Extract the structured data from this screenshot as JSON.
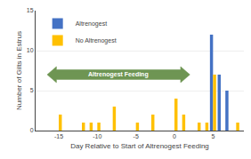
{
  "chart_data": {
    "type": "bar",
    "xlabel": "Day Relative to Start of Altrenogest Feeding",
    "ylabel": "Number of Gilts in Estrus",
    "x": [
      -16,
      -15,
      -14,
      -13,
      -12,
      -11,
      -10,
      -9,
      -8,
      -7,
      -6,
      -5,
      -4,
      -3,
      -2,
      -1,
      0,
      1,
      2,
      3,
      4,
      5,
      6,
      7,
      8
    ],
    "series": [
      {
        "name": "Altrenogest",
        "color": "#4472c4",
        "values": [
          0,
          0,
          0,
          0,
          0,
          0,
          0,
          0,
          0,
          0,
          0,
          0,
          0,
          0,
          0,
          0,
          0,
          0,
          0,
          0,
          0,
          12,
          7,
          5,
          0
        ]
      },
      {
        "name": "No Altrenogest",
        "color": "#ffc000",
        "values": [
          0,
          2,
          0,
          0,
          1,
          1,
          1,
          0,
          3,
          0,
          0,
          1,
          0,
          2,
          0,
          0,
          4,
          2,
          0,
          1,
          1,
          7,
          0,
          0,
          1
        ]
      }
    ],
    "xlim": [
      -18,
      9
    ],
    "xticks": [
      -15,
      -10,
      -5,
      0,
      5
    ],
    "ylim": [
      0,
      15
    ],
    "yticks": [
      0,
      5,
      10,
      15
    ],
    "grid": true,
    "legend": "upper left",
    "annotations": [
      {
        "text": "Altrenogest Feeding",
        "x_start": -16.5,
        "x_end": 2.0,
        "y": 7.0,
        "color": "#5f8a41"
      }
    ]
  }
}
